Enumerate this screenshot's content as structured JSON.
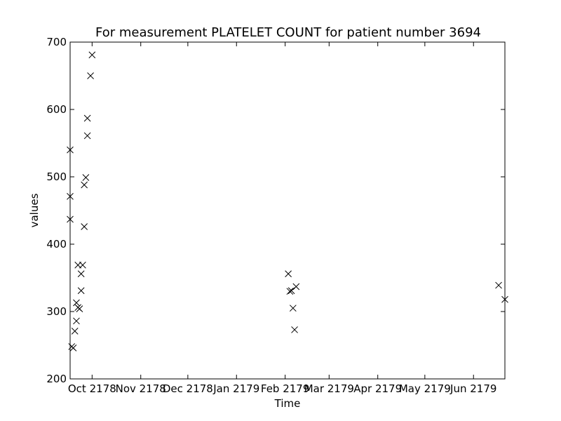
{
  "chart_data": {
    "type": "scatter",
    "title": "For measurement PLATELET COUNT for patient number 3694",
    "xlabel": "Time",
    "ylabel": "values",
    "ylim": [
      200,
      700
    ],
    "xlim": [
      "2178-09-17",
      "2179-06-21"
    ],
    "marker": "x",
    "marker_color": "#000000",
    "grid": false,
    "y_ticks": [
      200,
      300,
      400,
      500,
      600,
      700
    ],
    "x_ticks": [
      {
        "date": "2178-10-01",
        "label": "Oct 2178"
      },
      {
        "date": "2178-11-01",
        "label": "Nov 2178"
      },
      {
        "date": "2178-12-01",
        "label": "Dec 2178"
      },
      {
        "date": "2179-01-01",
        "label": "Jan 2179"
      },
      {
        "date": "2179-02-01",
        "label": "Feb 2179"
      },
      {
        "date": "2179-03-01",
        "label": "Mar 2179"
      },
      {
        "date": "2179-04-01",
        "label": "Apr 2179"
      },
      {
        "date": "2179-05-01",
        "label": "May 2179"
      },
      {
        "date": "2179-06-01",
        "label": "Jun 2179"
      }
    ],
    "points": [
      {
        "x": "2178-09-17",
        "y": 540
      },
      {
        "x": "2178-09-17",
        "y": 471
      },
      {
        "x": "2178-09-17",
        "y": 437
      },
      {
        "x": "2178-09-18",
        "y": 248
      },
      {
        "x": "2178-09-19",
        "y": 246
      },
      {
        "x": "2178-09-20",
        "y": 271
      },
      {
        "x": "2178-09-21",
        "y": 286
      },
      {
        "x": "2178-09-21",
        "y": 313
      },
      {
        "x": "2178-09-22",
        "y": 369
      },
      {
        "x": "2178-09-22",
        "y": 306
      },
      {
        "x": "2178-09-23",
        "y": 304
      },
      {
        "x": "2178-09-24",
        "y": 331
      },
      {
        "x": "2178-09-24",
        "y": 356
      },
      {
        "x": "2178-09-25",
        "y": 369
      },
      {
        "x": "2178-09-26",
        "y": 426
      },
      {
        "x": "2178-09-26",
        "y": 488
      },
      {
        "x": "2178-09-27",
        "y": 499
      },
      {
        "x": "2178-09-28",
        "y": 561
      },
      {
        "x": "2178-09-28",
        "y": 587
      },
      {
        "x": "2178-09-30",
        "y": 650
      },
      {
        "x": "2178-10-01",
        "y": 681
      },
      {
        "x": "2179-02-03",
        "y": 356
      },
      {
        "x": "2179-02-04",
        "y": 330
      },
      {
        "x": "2179-02-05",
        "y": 331
      },
      {
        "x": "2179-02-06",
        "y": 305
      },
      {
        "x": "2179-02-07",
        "y": 273
      },
      {
        "x": "2179-02-08",
        "y": 337
      },
      {
        "x": "2179-06-17",
        "y": 339
      },
      {
        "x": "2179-06-21",
        "y": 318
      }
    ]
  }
}
